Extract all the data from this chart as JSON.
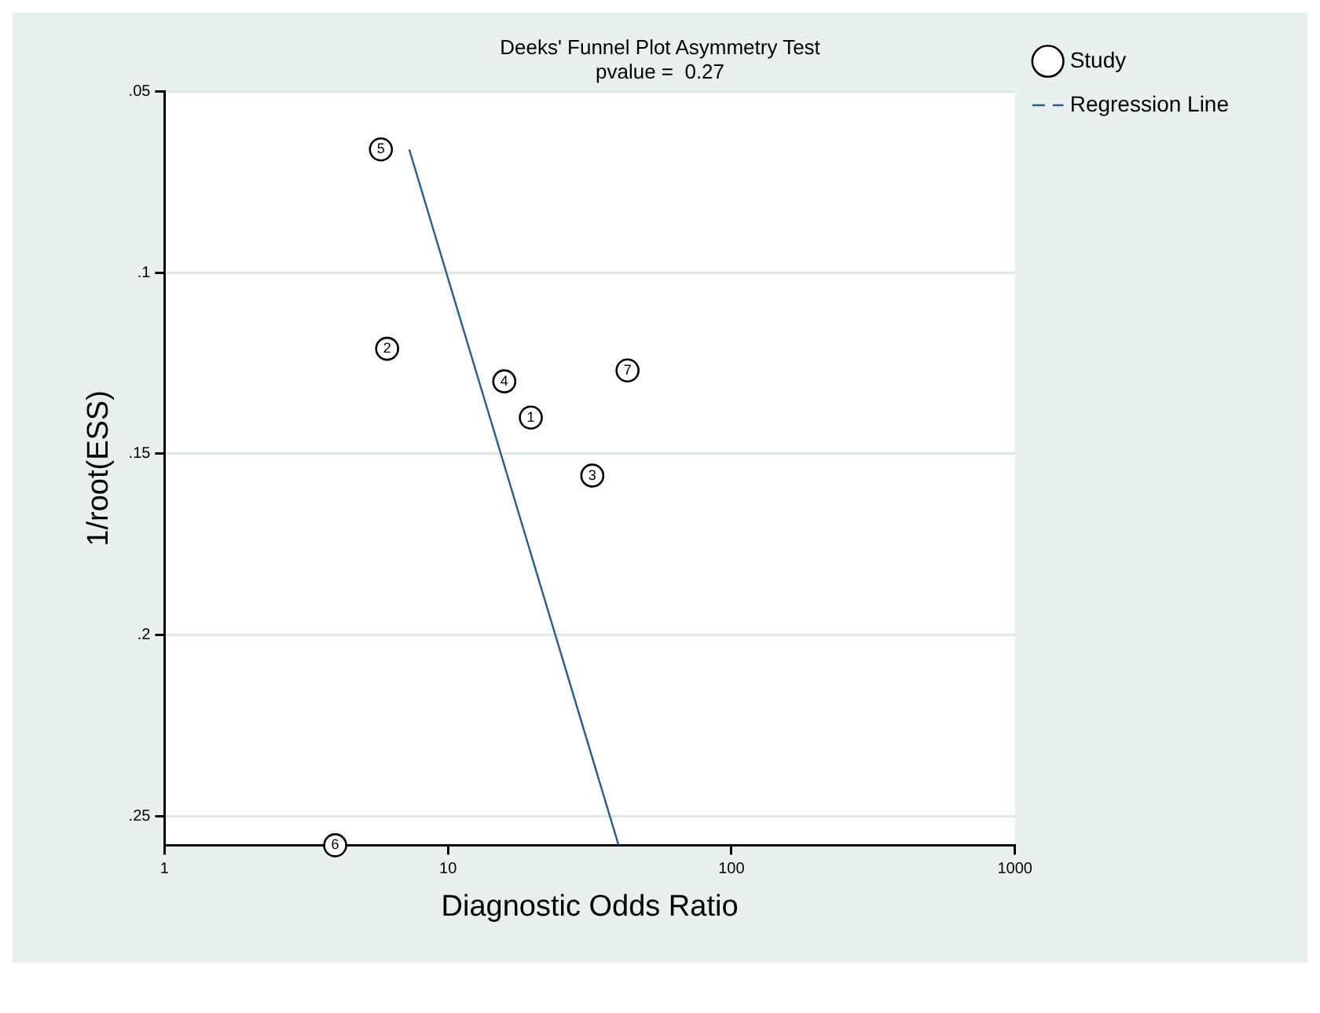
{
  "chart_data": {
    "type": "scatter",
    "title": "Deeks' Funnel Plot Asymmetry Test",
    "subtitle": "pvalue =  0.27",
    "xlabel": "Diagnostic Odds Ratio",
    "ylabel": "1/root(ESS)",
    "series": [
      {
        "name": "Study",
        "color": "#000000",
        "marker": "circle",
        "x": [
          19.6,
          6.1,
          32.3,
          15.8,
          5.8,
          4.0,
          43
        ],
        "values": [
          0.14,
          0.121,
          0.156,
          0.13,
          0.066,
          0.258,
          0.127
        ]
      },
      {
        "name": "Regression Line",
        "type": "line",
        "color": "#2b5a8f",
        "marker": "none",
        "line_style": "solid",
        "x": [
          7.3,
          40
        ],
        "values": [
          0.066,
          0.258
        ]
      }
    ],
    "annotations": [
      {
        "text": "1",
        "x": 19.6,
        "y": 0.14
      },
      {
        "text": "2",
        "x": 6.1,
        "y": 0.121
      },
      {
        "text": "3",
        "x": 32.3,
        "y": 0.156
      },
      {
        "text": "4",
        "x": 15.8,
        "y": 0.13
      },
      {
        "text": "5",
        "x": 5.8,
        "y": 0.066
      },
      {
        "text": "6",
        "x": 4.0,
        "y": 0.258
      },
      {
        "text": "7",
        "x": 43,
        "y": 0.127
      }
    ],
    "log": "x",
    "xlim": [
      1,
      1000
    ],
    "xticks": [
      1,
      10,
      100,
      1000
    ],
    "ylim": [
      0.258,
      0.05
    ],
    "yticks": [
      {
        "value": 0.05,
        "label": ".05"
      },
      {
        "value": 0.1,
        "label": ".1"
      },
      {
        "value": 0.15,
        "label": ".15"
      },
      {
        "value": 0.2,
        "label": ".2"
      },
      {
        "value": 0.25,
        "label": ".25"
      }
    ],
    "grid": "y",
    "legend": "right"
  }
}
